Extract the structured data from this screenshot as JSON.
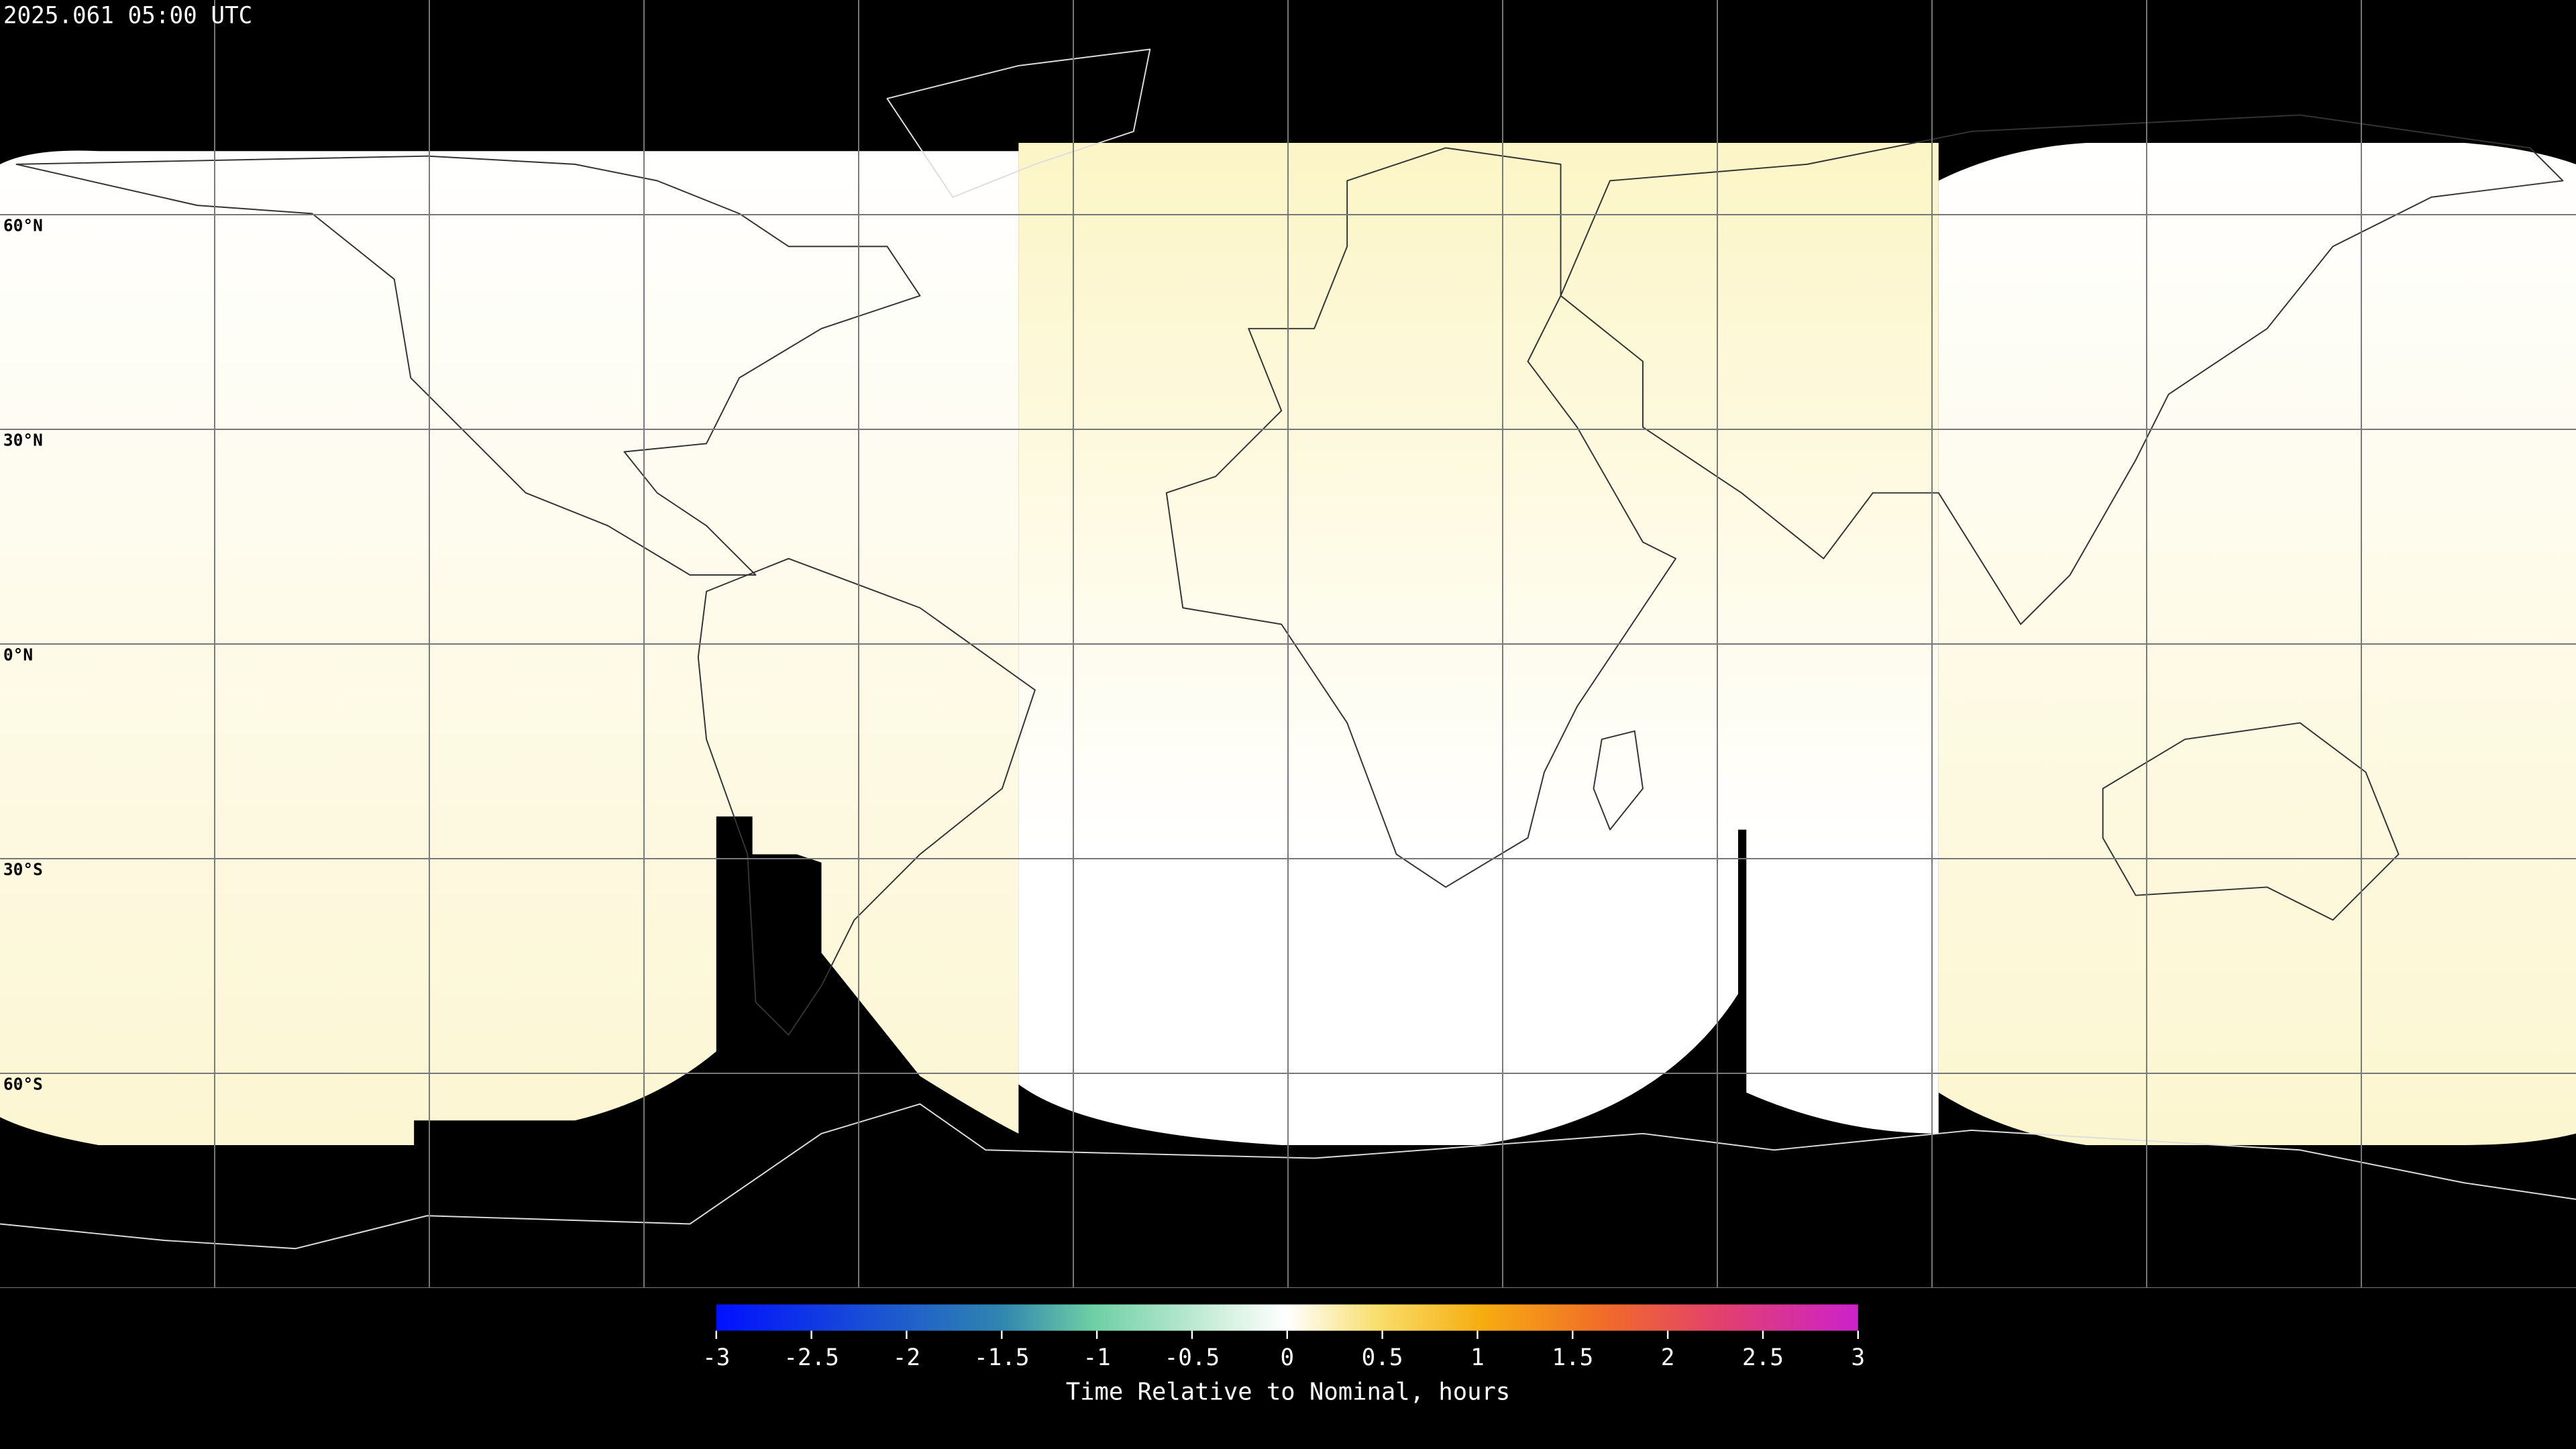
{
  "header": {
    "title": "2025.061 05:00 UTC"
  },
  "map": {
    "lat_labels": [
      "60°N",
      "30°N",
      "0°N",
      "30°S",
      "60°S"
    ]
  },
  "colorbar": {
    "label": "Time Relative to Nominal, hours",
    "lim": [
      -3,
      3
    ],
    "ticks": [
      -3,
      -2.5,
      -2,
      -1.5,
      -1,
      -0.5,
      0,
      0.5,
      1,
      1.5,
      2,
      2.5,
      3
    ]
  }
}
